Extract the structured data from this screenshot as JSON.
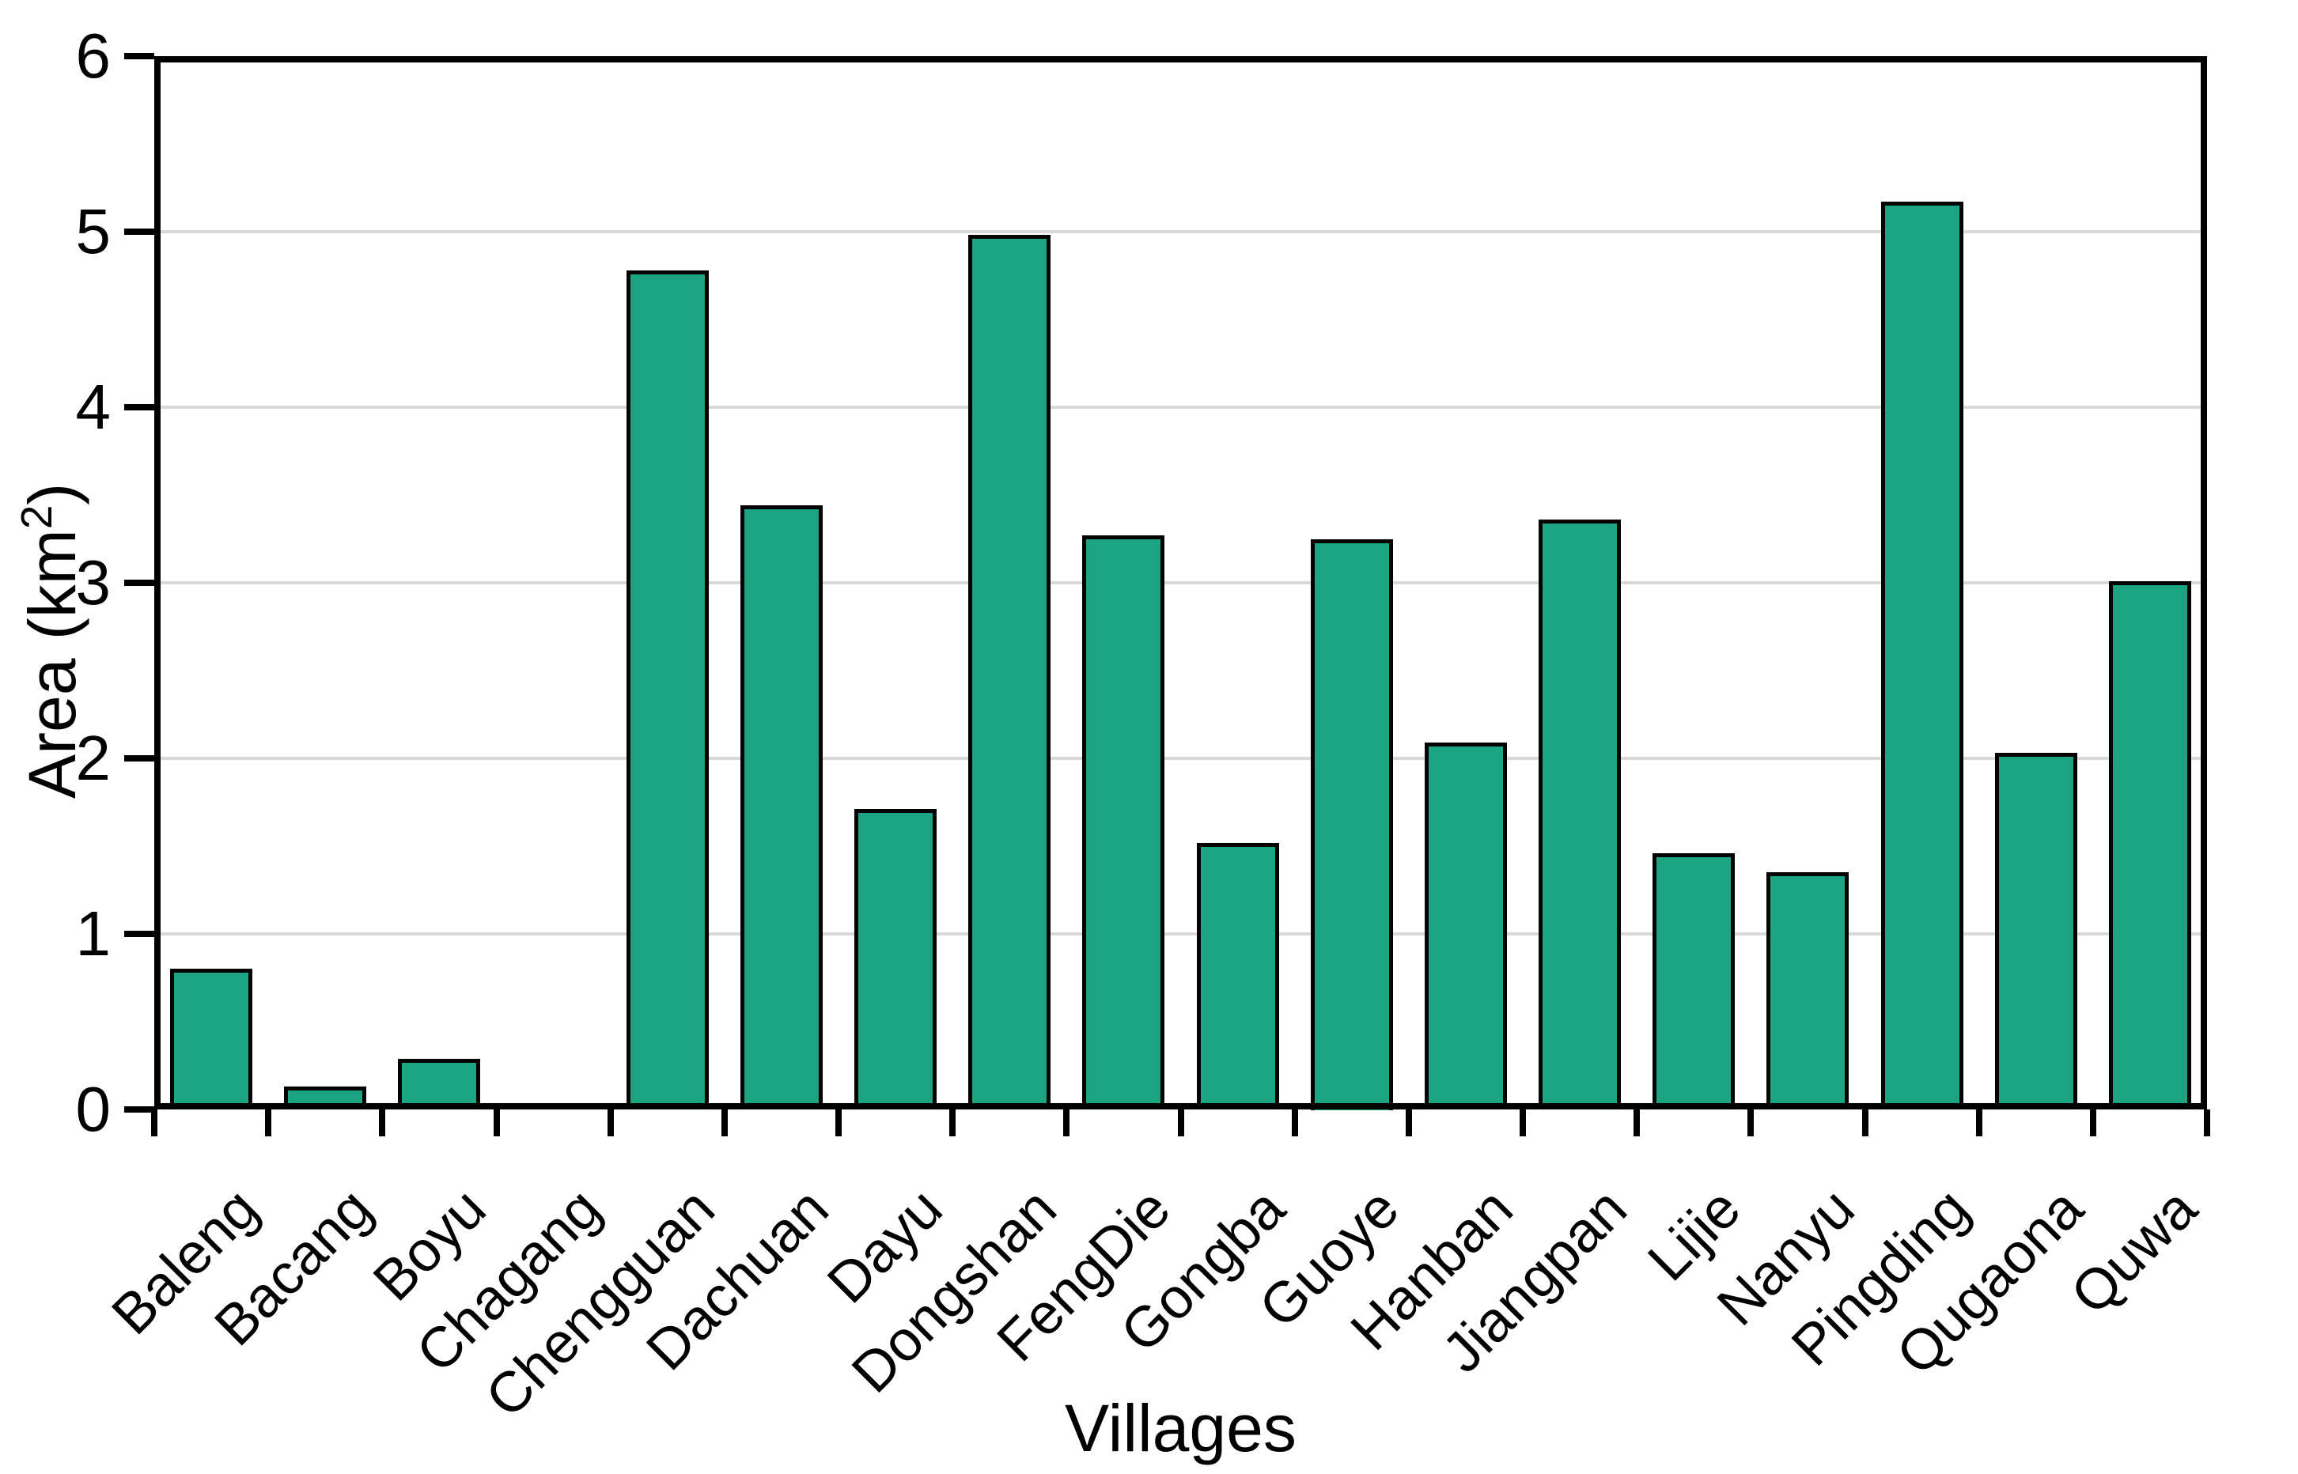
{
  "figure": {
    "background": "#FFFFFF",
    "axis_color": "#000000"
  },
  "chart_data": {
    "type": "bar",
    "title": "",
    "categories": [
      "Baleng",
      "Bacang",
      "Boyu",
      "Chagang",
      "Chengguan",
      "Dachuan",
      "Dayu",
      "Dongshan",
      "FengDie",
      "Gongba",
      "Guoye",
      "Hanban",
      "Jiangpan",
      "Lijie",
      "Nanyu",
      "Pingding",
      "Qugaona",
      "Quwa"
    ],
    "values": [
      0.8,
      0.13,
      0.29,
      0.03,
      4.78,
      3.44,
      1.71,
      4.98,
      3.27,
      1.52,
      3.25,
      2.09,
      3.36,
      1.46,
      1.35,
      5.17,
      2.03,
      3.01
    ],
    "xlabel": "Villages",
    "ylabel": "Area (km²)",
    "ylabel_parts": {
      "main": "Area (km",
      "sup": "2",
      "end": ")"
    },
    "ylim": [
      0,
      6
    ],
    "yticks": [
      0,
      1,
      2,
      3,
      4,
      5,
      6
    ],
    "grid": "horizontal gridlines at integer values",
    "legend": "none",
    "bar_color": "#1CA585",
    "bar_border_color": "#000000",
    "gridline_color": "#D9D9D9"
  }
}
